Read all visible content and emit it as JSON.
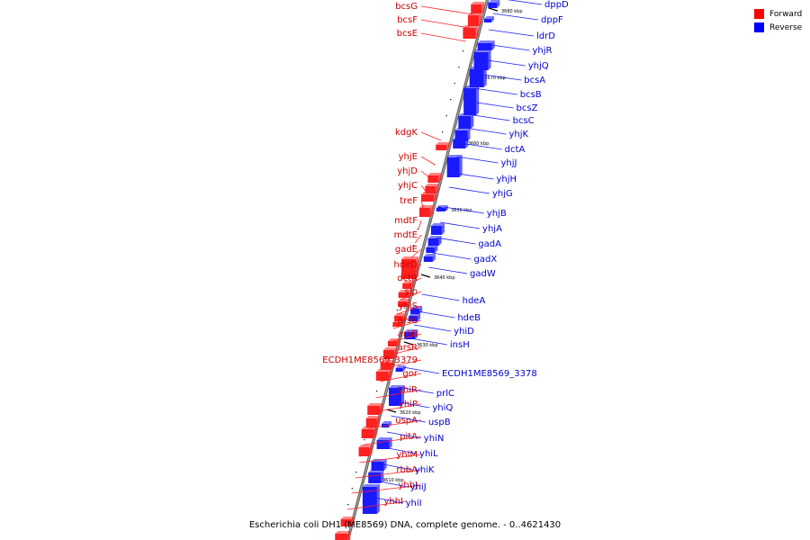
{
  "caption": "Escherichia coli DH1 (ME8569) DNA, complete genome. - 0..4621430",
  "legend": [
    {
      "label": "Forward",
      "color": "#ff0000"
    },
    {
      "label": "Reverse",
      "color": "#0000ff"
    }
  ],
  "colors": {
    "forward": "#ff2020",
    "reverse": "#1a1aff",
    "forward_text": "#cc0000",
    "reverse_text": "#0000cc",
    "backbone": "#9a9a9a"
  },
  "ticks": [
    "3680 kbp",
    "3670 kbp",
    "3660 kbp",
    "3650 kbp",
    "3640 kbp",
    "3630 kbp",
    "3620 kbp",
    "3610 kbp"
  ],
  "forward_genes": [
    "bcsG",
    "bcsF",
    "bcsE",
    "kdgK",
    "yhjE",
    "yhjD",
    "yhjC",
    "treF",
    "mdtF",
    "mdtE",
    "gadE",
    "hdeD",
    "dctR",
    "slp",
    "yhiS",
    "arsC",
    "arsB",
    "arsR",
    "ECDH1ME8569_3379",
    "gor",
    "yhiR",
    "yhiP",
    "uspA",
    "pitA",
    "yhiM",
    "rbbA",
    "yhhJ",
    "yhhI"
  ],
  "reverse_genes": [
    "dppD",
    "dppF",
    "ldrD",
    "yhjR",
    "yhjQ",
    "bcsA",
    "bcsB",
    "bcsZ",
    "bcsC",
    "yhjK",
    "dctA",
    "yhjJ",
    "yhjH",
    "yhjG",
    "yhjB",
    "yhjA",
    "gadA",
    "gadX",
    "gadW",
    "hdeA",
    "hdeB",
    "yhiD",
    "insH",
    "ECDH1ME8569_3378",
    "prlC",
    "yhiQ",
    "uspB",
    "yhiN",
    "yhiL",
    "yhiK",
    "yhiJ",
    "yhiI"
  ]
}
